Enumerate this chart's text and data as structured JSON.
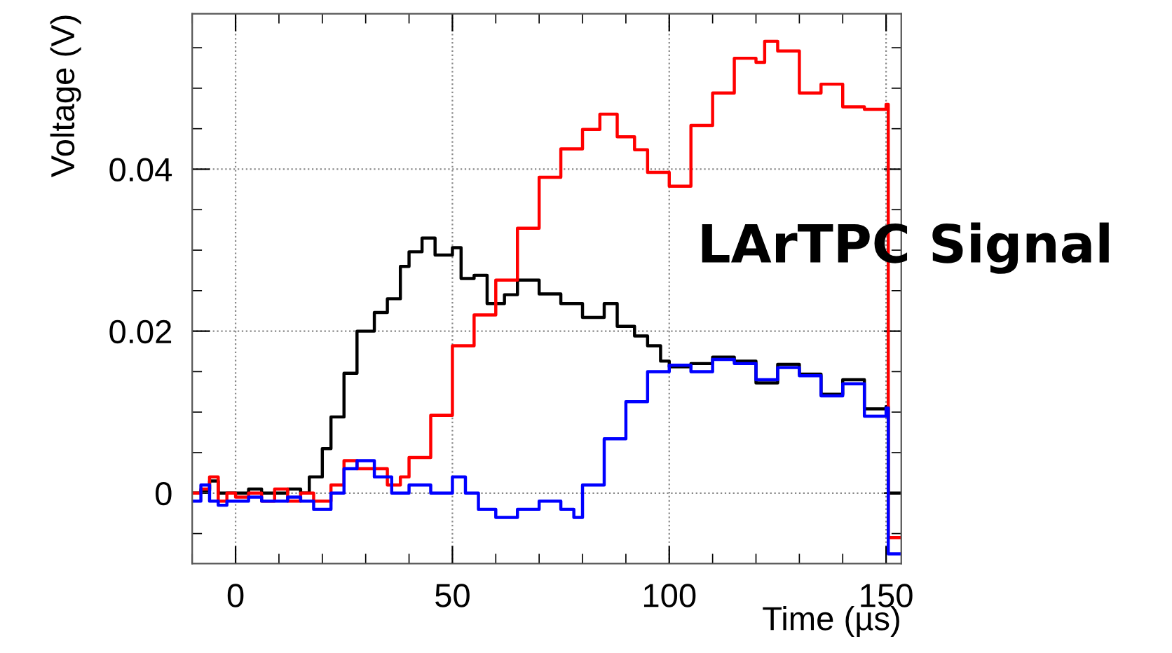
{
  "chart_data": {
    "type": "step",
    "xlabel": "Time (µs)",
    "ylabel": "Voltage (V)",
    "annotations": [
      "LArTPC Signal"
    ],
    "xlim": [
      -10,
      153.5
    ],
    "ylim": [
      -0.0087,
      0.0592
    ],
    "xticks": [
      0,
      50,
      100,
      150
    ],
    "yticks": [
      0,
      0.02,
      0.04
    ],
    "grid": true,
    "line_style": "solid",
    "marker": "none",
    "series": [
      {
        "color": "#000000",
        "x": [
          -10,
          -8,
          -6,
          -4,
          -2,
          0,
          3,
          6,
          9,
          12,
          15,
          17,
          20,
          22,
          25,
          28,
          32,
          35,
          38,
          40,
          43,
          46,
          50,
          52,
          55,
          58,
          62,
          65,
          70,
          75,
          80,
          85,
          88,
          92,
          95,
          98,
          100,
          105,
          110,
          115,
          120,
          125,
          130,
          135,
          140,
          145,
          150,
          150.5,
          153.5
        ],
        "values": [
          0,
          0.0003,
          0.0015,
          0,
          0,
          0,
          0.0005,
          0,
          0,
          0.0005,
          0,
          0.002,
          0.0055,
          0.0094,
          0.0148,
          0.02,
          0.0223,
          0.024,
          0.028,
          0.0298,
          0.0315,
          0.0294,
          0.0303,
          0.0265,
          0.0269,
          0.0234,
          0.0245,
          0.0263,
          0.0246,
          0.0234,
          0.0217,
          0.0234,
          0.0206,
          0.0194,
          0.0182,
          0.0163,
          0.0156,
          0.016,
          0.0168,
          0.0163,
          0.0136,
          0.0159,
          0.0147,
          0.0122,
          0.014,
          0.0104,
          0.0107,
          0,
          0
        ]
      },
      {
        "color": "#ff0000",
        "x": [
          -10,
          -8,
          -6,
          -4,
          -2,
          0,
          3,
          6,
          9,
          12,
          15,
          18,
          22,
          25,
          28,
          32,
          35,
          38,
          40,
          45,
          50,
          55,
          60,
          65,
          70,
          75,
          80,
          84,
          88,
          92,
          95,
          100,
          105,
          110,
          115,
          120,
          122,
          125,
          130,
          135,
          140,
          145,
          150,
          150.5,
          153.5
        ],
        "values": [
          0,
          0.0005,
          0.002,
          -0.001,
          0,
          -0.0005,
          0,
          -0.001,
          0.0005,
          -0.001,
          0,
          -0.001,
          0.001,
          0.004,
          0.003,
          0.003,
          0.001,
          0.002,
          0.0044,
          0.0096,
          0.0182,
          0.022,
          0.0263,
          0.0327,
          0.039,
          0.0425,
          0.0449,
          0.0468,
          0.044,
          0.0424,
          0.0396,
          0.0379,
          0.0454,
          0.0494,
          0.0537,
          0.0532,
          0.0558,
          0.0546,
          0.0494,
          0.0505,
          0.0477,
          0.0474,
          0.048,
          -0.0055,
          -0.0055
        ]
      },
      {
        "color": "#0000ff",
        "x": [
          -10,
          -8,
          -6,
          -4,
          -2,
          0,
          3,
          6,
          9,
          12,
          15,
          18,
          22,
          25,
          28,
          32,
          36,
          40,
          45,
          50,
          53,
          56,
          60,
          65,
          70,
          75,
          78,
          80,
          85,
          90,
          95,
          100,
          105,
          110,
          115,
          120,
          125,
          130,
          135,
          140,
          145,
          150,
          150.5,
          153.5
        ],
        "values": [
          -0.001,
          0.001,
          -0.001,
          -0.0015,
          -0.001,
          -0.001,
          -0.0005,
          -0.001,
          -0.001,
          -0.0005,
          -0.001,
          -0.002,
          0,
          0.003,
          0.004,
          0.002,
          0,
          0.001,
          0,
          0.002,
          0,
          -0.002,
          -0.003,
          -0.002,
          -0.001,
          -0.002,
          -0.003,
          0.001,
          0.0067,
          0.0113,
          0.015,
          0.0158,
          0.015,
          0.0165,
          0.016,
          0.014,
          0.0155,
          0.0145,
          0.012,
          0.0135,
          0.0095,
          0.0105,
          -0.0075,
          -0.0075
        ]
      }
    ]
  }
}
